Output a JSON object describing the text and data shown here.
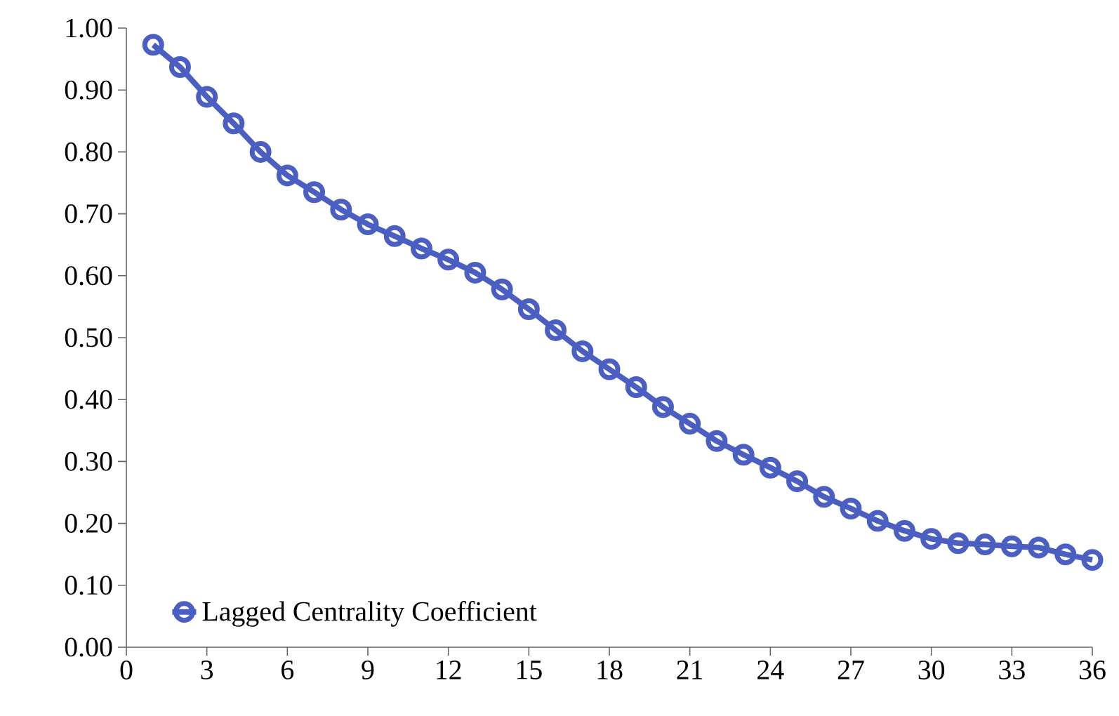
{
  "chart_data": {
    "type": "line",
    "x": [
      1,
      2,
      3,
      4,
      5,
      6,
      7,
      8,
      9,
      10,
      11,
      12,
      13,
      14,
      15,
      16,
      17,
      18,
      19,
      20,
      21,
      22,
      23,
      24,
      25,
      26,
      27,
      28,
      29,
      30,
      31,
      32,
      33,
      34,
      35,
      36
    ],
    "series": [
      {
        "name": "Lagged Centrality Coefficient",
        "color": "#4a5fc1",
        "values": [
          0.973,
          0.937,
          0.889,
          0.846,
          0.8,
          0.762,
          0.735,
          0.707,
          0.683,
          0.664,
          0.644,
          0.626,
          0.605,
          0.578,
          0.546,
          0.512,
          0.478,
          0.449,
          0.42,
          0.388,
          0.361,
          0.333,
          0.311,
          0.29,
          0.268,
          0.243,
          0.224,
          0.204,
          0.188,
          0.175,
          0.168,
          0.166,
          0.163,
          0.161,
          0.15,
          0.141
        ]
      }
    ],
    "xlim": [
      0,
      36
    ],
    "xticks": [
      0,
      3,
      6,
      9,
      12,
      15,
      18,
      21,
      24,
      27,
      30,
      33,
      36
    ],
    "ylim": [
      0,
      1
    ],
    "yticks": [
      {
        "value": 0,
        "label": "0.00"
      },
      {
        "value": 0.1,
        "label": "0.10"
      },
      {
        "value": 0.2,
        "label": "0.20"
      },
      {
        "value": 0.3,
        "label": "0.30"
      },
      {
        "value": 0.4,
        "label": "0.40"
      },
      {
        "value": 0.5,
        "label": "0.50"
      },
      {
        "value": 0.6,
        "label": "0.60"
      },
      {
        "value": 0.7,
        "label": "0.70"
      },
      {
        "value": 0.8,
        "label": "0.80"
      },
      {
        "value": 0.9,
        "label": "0.90"
      },
      {
        "value": 1,
        "label": "1.00"
      }
    ],
    "grid": false,
    "legend": "bottom left",
    "marker": "circle",
    "line_style": "solid"
  }
}
